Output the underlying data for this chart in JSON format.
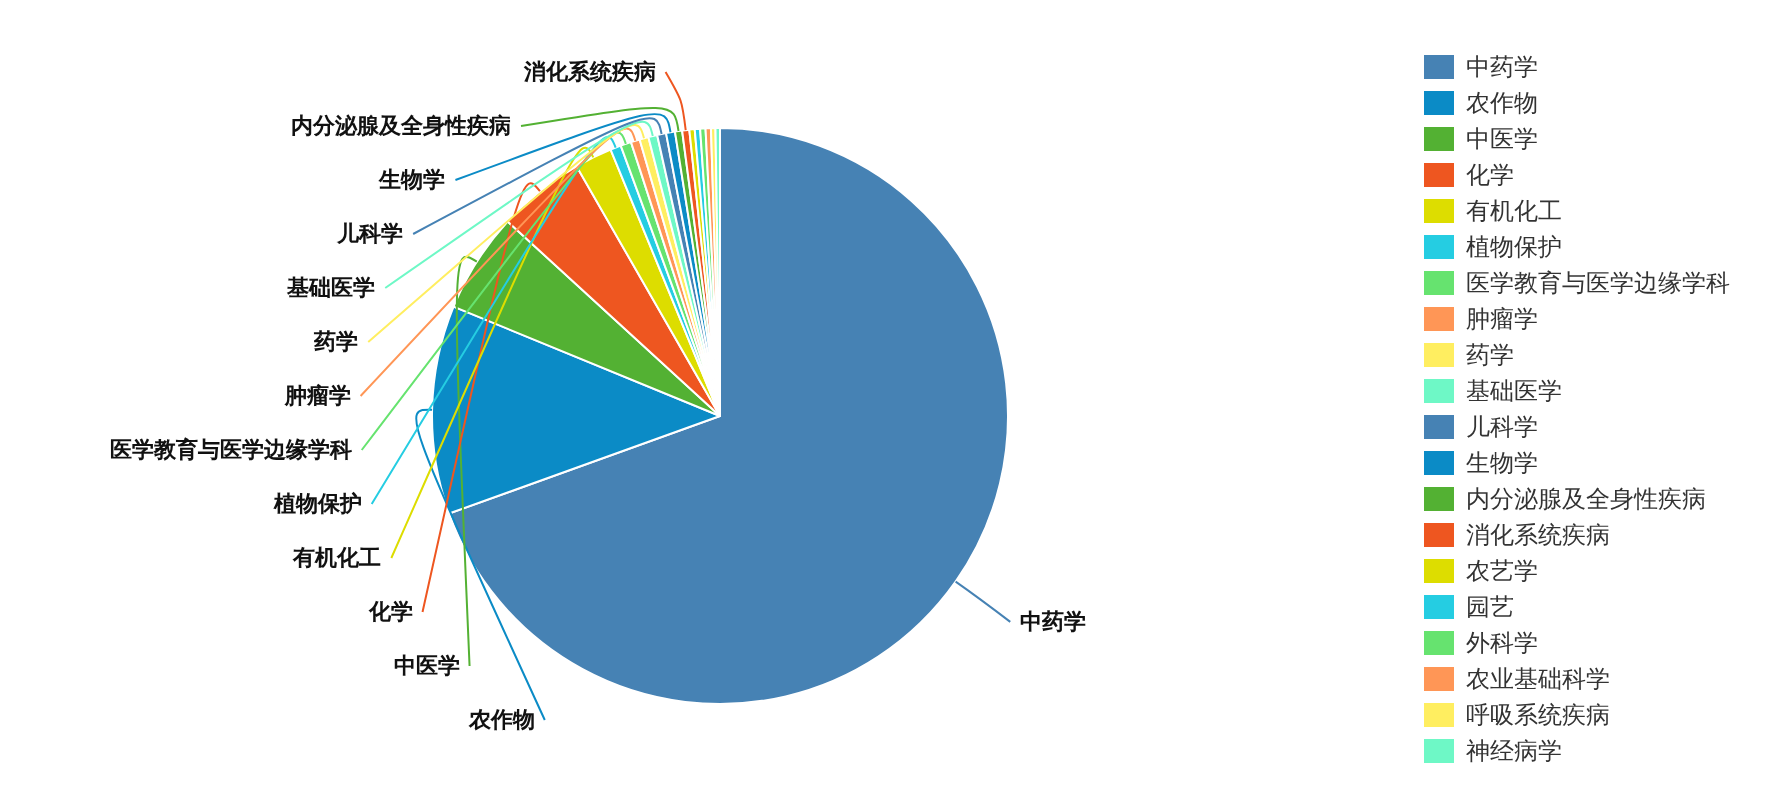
{
  "chart_data": {
    "type": "pie",
    "categories": [
      "中药学",
      "农作物",
      "中医学",
      "化学",
      "有机化工",
      "植物保护",
      "医学教育与医学边缘学科",
      "肿瘤学",
      "药学",
      "基础医学",
      "儿科学",
      "生物学",
      "内分泌腺及全身性疾病",
      "消化系统疾病",
      "农艺学",
      "园艺",
      "外科学",
      "农业基础科学",
      "呼吸系统疾病",
      "神经病学"
    ],
    "values": [
      69.5,
      11.7,
      5.6,
      4.9,
      2.1,
      0.6,
      0.6,
      0.5,
      0.5,
      0.5,
      0.5,
      0.5,
      0.4,
      0.4,
      0.3,
      0.3,
      0.3,
      0.3,
      0.25,
      0.25
    ],
    "colors": [
      "#4682b4",
      "#0b8bc6",
      "#53b133",
      "#ee5620",
      "#dddd00",
      "#25cde2",
      "#66e36f",
      "#ff9656",
      "#ffee60",
      "#6ef8c6",
      "#4682b4",
      "#0b8bc6",
      "#53b133",
      "#ee5620",
      "#dddd00",
      "#25cde2",
      "#66e36f",
      "#ff9656",
      "#ffee60",
      "#6ef8c6"
    ],
    "legend": "right"
  }
}
